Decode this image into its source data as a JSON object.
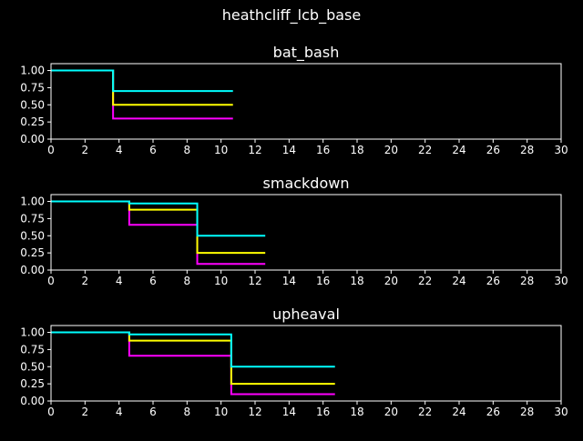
{
  "figure": {
    "suptitle": "heathcliff_lcb_base",
    "background": "#000000",
    "foreground": "#ffffff"
  },
  "chart_data": [
    {
      "type": "line",
      "step": "post",
      "title": "bat_bash",
      "xlim": [
        0,
        30
      ],
      "ylim": [
        0,
        1.1
      ],
      "xticks": [
        "0",
        "2",
        "4",
        "6",
        "8",
        "10",
        "12",
        "14",
        "16",
        "18",
        "20",
        "22",
        "24",
        "26",
        "28",
        "30"
      ],
      "yticks": [
        "0.00",
        "0.25",
        "0.50",
        "0.75",
        "1.00"
      ],
      "grid": false,
      "series": [
        {
          "color": "#ff00ff",
          "x": [
            0,
            3.65,
            10.7
          ],
          "y": [
            1.0,
            0.3,
            0.3
          ]
        },
        {
          "color": "#ffff00",
          "x": [
            0,
            3.65,
            10.7
          ],
          "y": [
            1.0,
            0.5,
            0.5
          ]
        },
        {
          "color": "#00ffff",
          "x": [
            0,
            3.65,
            10.7
          ],
          "y": [
            1.0,
            0.7,
            0.7
          ]
        }
      ]
    },
    {
      "type": "line",
      "step": "post",
      "title": "smackdown",
      "xlim": [
        0,
        30
      ],
      "ylim": [
        0,
        1.1
      ],
      "xticks": [
        "0",
        "2",
        "4",
        "6",
        "8",
        "10",
        "12",
        "14",
        "16",
        "18",
        "20",
        "22",
        "24",
        "26",
        "28",
        "30"
      ],
      "yticks": [
        "0.00",
        "0.25",
        "0.50",
        "0.75",
        "1.00"
      ],
      "grid": false,
      "series": [
        {
          "color": "#ff00ff",
          "x": [
            0,
            4.6,
            8.6,
            12.6
          ],
          "y": [
            1.0,
            0.66,
            0.09,
            0.09
          ]
        },
        {
          "color": "#ffff00",
          "x": [
            0,
            4.6,
            8.6,
            12.6
          ],
          "y": [
            1.0,
            0.88,
            0.25,
            0.25
          ]
        },
        {
          "color": "#00ffff",
          "x": [
            0,
            4.6,
            8.6,
            12.6
          ],
          "y": [
            1.0,
            0.97,
            0.5,
            0.5
          ]
        }
      ]
    },
    {
      "type": "line",
      "step": "post",
      "title": "upheaval",
      "xlim": [
        0,
        30
      ],
      "ylim": [
        0,
        1.1
      ],
      "xticks": [
        "0",
        "2",
        "4",
        "6",
        "8",
        "10",
        "12",
        "14",
        "16",
        "18",
        "20",
        "22",
        "24",
        "26",
        "28",
        "30"
      ],
      "yticks": [
        "0.00",
        "0.25",
        "0.50",
        "0.75",
        "1.00"
      ],
      "grid": false,
      "series": [
        {
          "color": "#ff00ff",
          "x": [
            0,
            4.6,
            10.6,
            16.7
          ],
          "y": [
            1.0,
            0.66,
            0.1,
            0.1
          ]
        },
        {
          "color": "#ffff00",
          "x": [
            0,
            4.6,
            10.6,
            16.7
          ],
          "y": [
            1.0,
            0.88,
            0.25,
            0.25
          ]
        },
        {
          "color": "#00ffff",
          "x": [
            0,
            4.6,
            10.6,
            16.7
          ],
          "y": [
            1.0,
            0.97,
            0.5,
            0.5
          ]
        }
      ]
    }
  ]
}
